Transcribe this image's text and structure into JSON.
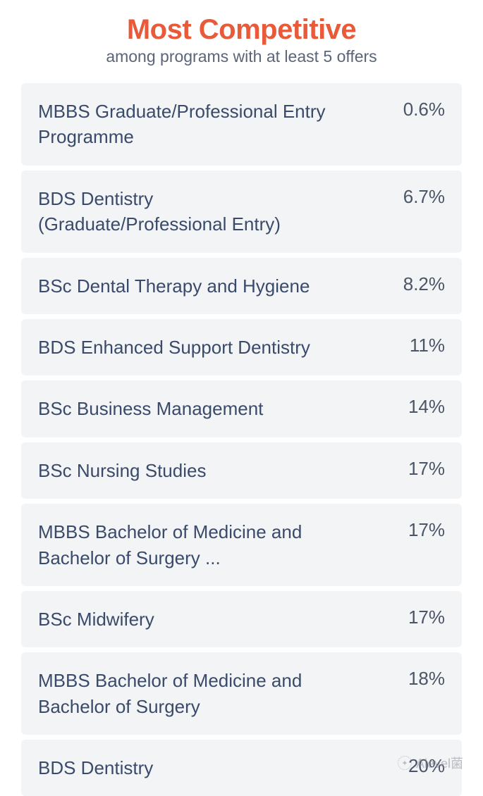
{
  "colors": {
    "title": "#e85a3a",
    "subtitle": "#5a6578",
    "program_text": "#3a4a6a",
    "pct_text": "#4a5568",
    "row_bg": "#f3f4f6",
    "page_bg": "#ffffff",
    "watermark": "#8a8f99"
  },
  "header": {
    "title": "Most Competitive",
    "subtitle": "among programs with at least 5 offers"
  },
  "rows": [
    {
      "program": "MBBS Graduate/Professional Entry Programme",
      "pct": "0.6%"
    },
    {
      "program": "BDS Dentistry (Graduate/Professional Entry)",
      "pct": "6.7%"
    },
    {
      "program": "BSc Dental Therapy and Hygiene",
      "pct": "8.2%"
    },
    {
      "program": "BDS Enhanced Support Dentistry",
      "pct": "11%"
    },
    {
      "program": "BSc Business Management",
      "pct": "14%"
    },
    {
      "program": "BSc Nursing Studies",
      "pct": "17%"
    },
    {
      "program": "MBBS Bachelor of Medicine and Bachelor of Surgery ...",
      "pct": "17%"
    },
    {
      "program": "BSc Midwifery",
      "pct": "17%"
    },
    {
      "program": "MBBS Bachelor of Medicine and Bachelor of Surgery",
      "pct": "18%"
    },
    {
      "program": "BDS Dentistry",
      "pct": "20%"
    }
  ],
  "watermark": {
    "label": "Alevel菌"
  }
}
